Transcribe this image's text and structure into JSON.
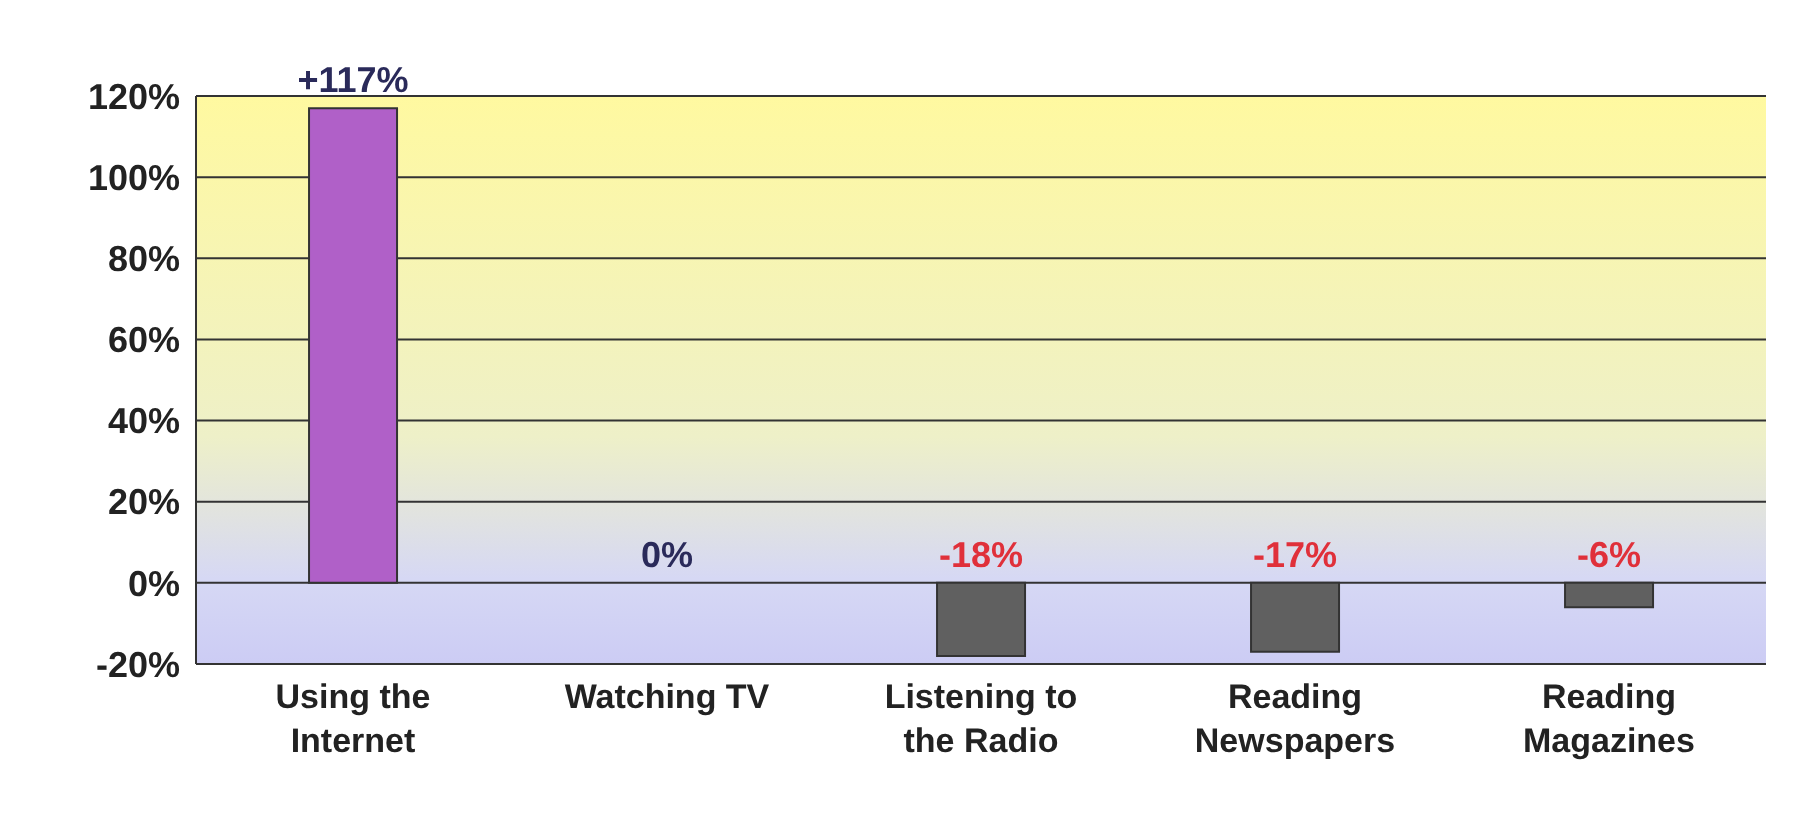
{
  "chart_data": {
    "type": "bar",
    "categories": [
      "Using the Internet",
      "Watching TV",
      "Listening to the Radio",
      "Reading Newspapers",
      "Reading Magazines"
    ],
    "values": [
      117,
      0,
      -18,
      -17,
      -6
    ],
    "colors": [
      "#b060c8",
      "#606060",
      "#606060",
      "#606060",
      "#606060"
    ],
    "value_labels": [
      "+117%",
      "0%",
      "-18%",
      "-17%",
      "-6%"
    ],
    "ylim": [
      -20,
      120
    ],
    "yticks": [
      {
        "value": -20,
        "label": "-20%"
      },
      {
        "value": 0,
        "label": "0%"
      },
      {
        "value": 20,
        "label": "20%"
      },
      {
        "value": 40,
        "label": "40%"
      },
      {
        "value": 60,
        "label": "60%"
      },
      {
        "value": 80,
        "label": "80%"
      },
      {
        "value": 100,
        "label": "100%"
      },
      {
        "value": 120,
        "label": "120%"
      }
    ],
    "grid": "y"
  }
}
